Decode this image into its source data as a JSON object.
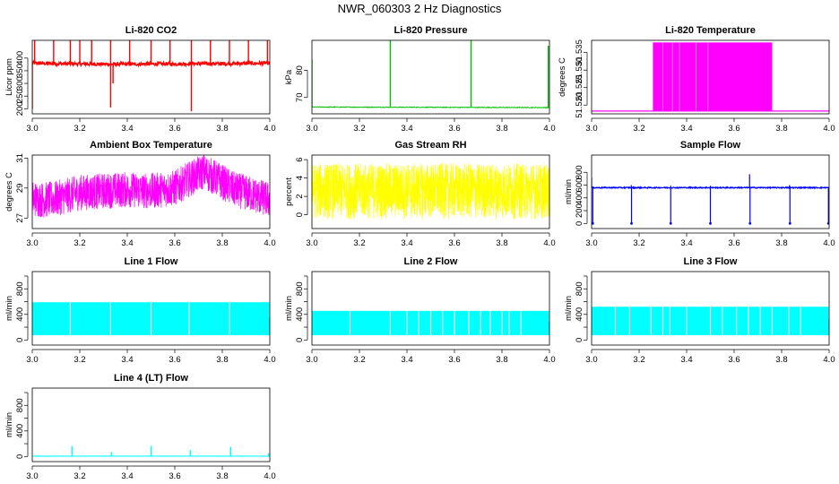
{
  "title": "NWR_060303  2 Hz Diagnostics",
  "chart_data": [
    {
      "id": "co2",
      "type": "line",
      "title": "Li-820 CO2",
      "ylabel": "Licor ppm",
      "color": "#ff0000",
      "xlim": [
        3.0,
        4.0
      ],
      "ylim": [
        180,
        470
      ],
      "yticks": [
        200,
        250,
        300,
        350,
        400
      ],
      "xticks": [
        3.0,
        3.2,
        3.4,
        3.6,
        3.8,
        4.0
      ],
      "xticklabels": [
        "3.0",
        "3.2",
        "3.4",
        "3.6",
        "3.8",
        "4.0"
      ],
      "baseline": [
        [
          3.0,
          380
        ],
        [
          3.1,
          378
        ],
        [
          3.2,
          377
        ],
        [
          3.3,
          376
        ],
        [
          3.4,
          376
        ],
        [
          3.5,
          377
        ],
        [
          3.6,
          377
        ],
        [
          3.7,
          378
        ],
        [
          3.8,
          378
        ],
        [
          3.9,
          379
        ],
        [
          4.0,
          380
        ]
      ],
      "spikes": [
        [
          3.0,
          200
        ],
        [
          3.01,
          470
        ],
        [
          3.09,
          470
        ],
        [
          3.16,
          470
        ],
        [
          3.2,
          470
        ],
        [
          3.25,
          470
        ],
        [
          3.33,
          470
        ],
        [
          3.33,
          205
        ],
        [
          3.34,
          300
        ],
        [
          3.41,
          470
        ],
        [
          3.5,
          470
        ],
        [
          3.58,
          470
        ],
        [
          3.67,
          470
        ],
        [
          3.67,
          190
        ],
        [
          3.75,
          470
        ],
        [
          3.83,
          470
        ],
        [
          3.91,
          470
        ],
        [
          3.99,
          470
        ]
      ]
    },
    {
      "id": "pressure",
      "type": "line",
      "title": "Li-820 Pressure",
      "ylabel": "kPa",
      "color": "#00c000",
      "xlim": [
        3.0,
        4.0
      ],
      "ylim": [
        64,
        91
      ],
      "yticks": [
        70,
        80
      ],
      "xticks": [
        3.0,
        3.2,
        3.4,
        3.6,
        3.8,
        4.0
      ],
      "xticklabels": [
        "3.0",
        "3.2",
        "3.4",
        "3.6",
        "3.8",
        "4.0"
      ],
      "baseline": [
        [
          3.0,
          66.5
        ],
        [
          4.0,
          66.3
        ]
      ],
      "spikes": [
        [
          3.0,
          84
        ],
        [
          3.33,
          91
        ],
        [
          3.67,
          91
        ],
        [
          3.995,
          89
        ]
      ]
    },
    {
      "id": "temperature",
      "type": "line",
      "title": "Li-820 Temperature",
      "ylabel": "degrees C",
      "color": "#ff00ff",
      "xlim": [
        3.0,
        4.0
      ],
      "ylim": [
        51.5175,
        51.5385
      ],
      "yticks": [
        51.52,
        51.525,
        51.53,
        51.535
      ],
      "yticklabels": [
        "51.520",
        "51.525",
        "51.530",
        "51.535"
      ],
      "xticks": [
        3.0,
        3.2,
        3.4,
        3.6,
        3.8,
        4.0
      ],
      "xticklabels": [
        "3.0",
        "3.2",
        "3.4",
        "3.6",
        "3.8",
        "4.0"
      ],
      "low": 51.5183,
      "high": 51.5379,
      "band": [
        3.26,
        3.76
      ]
    },
    {
      "id": "ambient",
      "type": "line",
      "title": "Ambient Box Temperature",
      "ylabel": "degrees C",
      "color": "#ff00ff",
      "xlim": [
        3.0,
        4.0
      ],
      "ylim": [
        26.3,
        31.2
      ],
      "yticks": [
        27,
        29,
        31
      ],
      "xticks": [
        3.0,
        3.2,
        3.4,
        3.6,
        3.8,
        4.0
      ],
      "xticklabels": [
        "3.0",
        "3.2",
        "3.4",
        "3.6",
        "3.8",
        "4.0"
      ],
      "trend": [
        [
          3.0,
          28.3
        ],
        [
          3.05,
          28.2
        ],
        [
          3.1,
          28.3
        ],
        [
          3.2,
          28.7
        ],
        [
          3.3,
          28.8
        ],
        [
          3.4,
          28.9
        ],
        [
          3.5,
          28.8
        ],
        [
          3.6,
          29.0
        ],
        [
          3.65,
          29.5
        ],
        [
          3.72,
          30.1
        ],
        [
          3.78,
          29.6
        ],
        [
          3.85,
          28.9
        ],
        [
          3.9,
          28.7
        ],
        [
          4.0,
          28.2
        ]
      ],
      "spread": 1.2
    },
    {
      "id": "rh",
      "type": "line",
      "title": "Gas Stream RH",
      "ylabel": "percent",
      "color": "#ffff00",
      "xlim": [
        3.0,
        4.0
      ],
      "ylim": [
        -1.5,
        6.5
      ],
      "yticks": [
        0,
        2,
        4,
        6
      ],
      "xticks": [
        3.0,
        3.2,
        3.4,
        3.6,
        3.8,
        4.0
      ],
      "xticklabels": [
        "3.0",
        "3.2",
        "3.4",
        "3.6",
        "3.8",
        "4.0"
      ],
      "range": [
        -0.5,
        5.6
      ]
    },
    {
      "id": "sample",
      "type": "line",
      "title": "Sample Flow",
      "ylabel": "ml/min",
      "color": "#0000ff",
      "xlim": [
        3.0,
        4.0
      ],
      "ylim": [
        -80,
        1070
      ],
      "yticks": [
        0,
        200,
        400,
        600,
        800
      ],
      "xticks": [
        3.0,
        3.2,
        3.4,
        3.6,
        3.8,
        4.0
      ],
      "xticklabels": [
        "3.0",
        "3.2",
        "3.4",
        "3.6",
        "3.8",
        "4.0"
      ],
      "baseline": 560,
      "drops": [
        [
          3.005,
          0
        ],
        [
          3.168,
          0
        ],
        [
          3.333,
          0
        ],
        [
          3.5,
          0
        ],
        [
          3.667,
          0
        ],
        [
          3.835,
          0
        ],
        [
          3.997,
          0
        ]
      ],
      "peaks": [
        [
          3.0,
          720
        ],
        [
          3.167,
          600
        ],
        [
          3.333,
          590
        ],
        [
          3.5,
          590
        ],
        [
          3.665,
          770
        ],
        [
          3.833,
          600
        ]
      ]
    },
    {
      "id": "line1",
      "type": "area",
      "title": "Line 1 Flow",
      "ylabel": "ml/min",
      "color": "#00ffff",
      "xlim": [
        3.0,
        4.0
      ],
      "ylim": [
        -80,
        1070
      ],
      "yticks": [
        0,
        400,
        800
      ],
      "yticks_minor": [
        200,
        600,
        1000
      ],
      "xticks": [
        3.0,
        3.2,
        3.4,
        3.6,
        3.8,
        4.0
      ],
      "xticklabels": [
        "3.0",
        "3.2",
        "3.4",
        "3.6",
        "3.8",
        "4.0"
      ],
      "low": 75,
      "high": 590,
      "gaps": [
        3.16,
        3.33,
        3.5,
        3.66,
        3.83
      ]
    },
    {
      "id": "line2",
      "type": "area",
      "title": "Line 2 Flow",
      "ylabel": "ml/min",
      "color": "#00ffff",
      "xlim": [
        3.0,
        4.0
      ],
      "ylim": [
        -80,
        1070
      ],
      "yticks": [
        0,
        400,
        800
      ],
      "yticks_minor": [
        200,
        600,
        1000
      ],
      "xticks": [
        3.0,
        3.2,
        3.4,
        3.6,
        3.8,
        4.0
      ],
      "xticklabels": [
        "3.0",
        "3.2",
        "3.4",
        "3.6",
        "3.8",
        "4.0"
      ],
      "low": 75,
      "high": 455,
      "gaps": [
        3.16,
        3.33,
        3.4,
        3.45,
        3.5,
        3.55,
        3.6,
        3.66,
        3.71,
        3.75,
        3.8,
        3.83,
        3.88
      ]
    },
    {
      "id": "line3",
      "type": "area",
      "title": "Line 3 Flow",
      "ylabel": "ml/min",
      "color": "#00ffff",
      "xlim": [
        3.0,
        4.0
      ],
      "ylim": [
        -80,
        1070
      ],
      "yticks": [
        0,
        400,
        800
      ],
      "yticks_minor": [
        200,
        600,
        1000
      ],
      "xticks": [
        3.0,
        3.2,
        3.4,
        3.6,
        3.8,
        4.0
      ],
      "xticklabels": [
        "3.0",
        "3.2",
        "3.4",
        "3.6",
        "3.8",
        "4.0"
      ],
      "low": 75,
      "high": 520,
      "gaps": [
        3.1,
        3.16,
        3.25,
        3.3,
        3.33,
        3.4,
        3.5,
        3.55,
        3.61,
        3.66,
        3.71,
        3.76,
        3.83,
        3.88
      ]
    },
    {
      "id": "line4",
      "type": "line",
      "title": "Line 4 (LT) Flow",
      "ylabel": "ml/min",
      "color": "#00ffff",
      "xlim": [
        3.0,
        4.0
      ],
      "ylim": [
        -80,
        1070
      ],
      "yticks": [
        0,
        400,
        800
      ],
      "yticks_minor": [
        200,
        600,
        1000
      ],
      "xticks": [
        3.0,
        3.2,
        3.4,
        3.6,
        3.8,
        4.0
      ],
      "xticklabels": [
        "3.0",
        "3.2",
        "3.4",
        "3.6",
        "3.8",
        "4.0"
      ],
      "baseline": 5,
      "spikes": [
        [
          3.167,
          160
        ],
        [
          3.333,
          70
        ],
        [
          3.5,
          165
        ],
        [
          3.665,
          100
        ],
        [
          3.835,
          150
        ],
        [
          3.995,
          50
        ]
      ]
    }
  ]
}
